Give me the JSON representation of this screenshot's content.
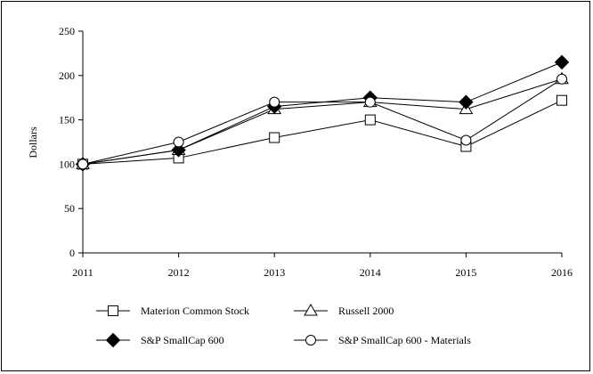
{
  "chart_data": {
    "type": "line",
    "title": "",
    "xlabel": "",
    "ylabel": "Dollars",
    "x": [
      "2011",
      "2012",
      "2013",
      "2014",
      "2015",
      "2016"
    ],
    "ylim": [
      0,
      250
    ],
    "yticks": [
      0,
      50,
      100,
      150,
      200,
      250
    ],
    "grid": false,
    "legend_position": "bottom",
    "series": [
      {
        "name": "Materion Common Stock",
        "marker": "square",
        "values": [
          100,
          107,
          130,
          150,
          120,
          172
        ]
      },
      {
        "name": "Russell 2000",
        "marker": "triangle",
        "values": [
          100,
          116,
          162,
          170,
          162,
          196
        ]
      },
      {
        "name": "S&P SmallCap 600",
        "marker": "diamond",
        "values": [
          100,
          116,
          165,
          175,
          170,
          215
        ]
      },
      {
        "name": "S&P SmallCap 600 - Materials",
        "marker": "circle",
        "values": [
          100,
          125,
          170,
          170,
          127,
          196
        ]
      }
    ]
  }
}
